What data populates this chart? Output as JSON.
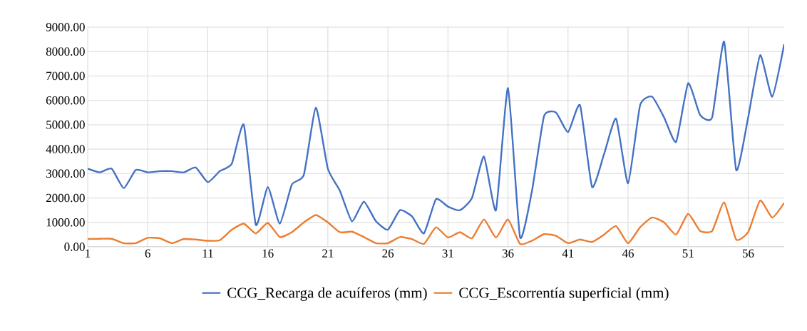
{
  "chart_data": {
    "type": "line",
    "categories": [
      "1",
      null,
      null,
      null,
      null,
      "6",
      null,
      null,
      null,
      null,
      "11",
      null,
      null,
      null,
      null,
      "16",
      null,
      null,
      null,
      null,
      "21",
      null,
      null,
      null,
      null,
      "26",
      null,
      null,
      null,
      null,
      "31",
      null,
      null,
      null,
      null,
      "36",
      null,
      null,
      null,
      null,
      "41",
      null,
      null,
      null,
      null,
      "46",
      null,
      null,
      null,
      null,
      "51",
      null,
      null,
      null,
      null,
      "56",
      null,
      null,
      null
    ],
    "series": [
      {
        "name": "CCG_Recarga de acuíferos (mm)",
        "color": "#4472c4",
        "values": [
          3200,
          3050,
          3200,
          2400,
          3150,
          3050,
          3100,
          3100,
          3050,
          3250,
          2650,
          3100,
          3400,
          5000,
          900,
          2450,
          950,
          2550,
          2950,
          5700,
          3200,
          2300,
          1050,
          1850,
          1050,
          700,
          1500,
          1250,
          550,
          1950,
          1650,
          1500,
          2000,
          3700,
          1500,
          6500,
          400,
          2300,
          5350,
          5500,
          4700,
          5800,
          2450,
          3800,
          5250,
          2600,
          5800,
          6150,
          5300,
          4300,
          6700,
          5400,
          5300,
          8400,
          3150,
          5300,
          7850,
          6150,
          8300
        ]
      },
      {
        "name": "CCG_Escorrentía superficial (mm)",
        "color": "#ed7d31",
        "values": [
          320,
          330,
          330,
          150,
          150,
          370,
          350,
          150,
          320,
          300,
          250,
          270,
          700,
          950,
          550,
          980,
          400,
          600,
          1000,
          1300,
          1000,
          600,
          620,
          400,
          150,
          150,
          400,
          320,
          120,
          800,
          380,
          600,
          350,
          1120,
          380,
          1120,
          120,
          250,
          520,
          450,
          150,
          300,
          200,
          500,
          850,
          150,
          800,
          1200,
          1000,
          500,
          1350,
          650,
          650,
          1820,
          300,
          600,
          1900,
          1200,
          1800
        ]
      }
    ],
    "ylim": [
      0,
      9000
    ],
    "yticks": [
      {
        "value": 0,
        "label": "0.00"
      },
      {
        "value": 1000,
        "label": "1000.00"
      },
      {
        "value": 2000,
        "label": "2000.00"
      },
      {
        "value": 3000,
        "label": "3000.00"
      },
      {
        "value": 4000,
        "label": "4000.00"
      },
      {
        "value": 5000,
        "label": "5000.00"
      },
      {
        "value": 6000,
        "label": "6000.00"
      },
      {
        "value": 7000,
        "label": "7000.00"
      },
      {
        "value": 8000,
        "label": "8000.00"
      },
      {
        "value": 9000,
        "label": "9000.00"
      }
    ],
    "grid": true,
    "legend": "bottom",
    "marker": "none",
    "line_style": "solid"
  }
}
